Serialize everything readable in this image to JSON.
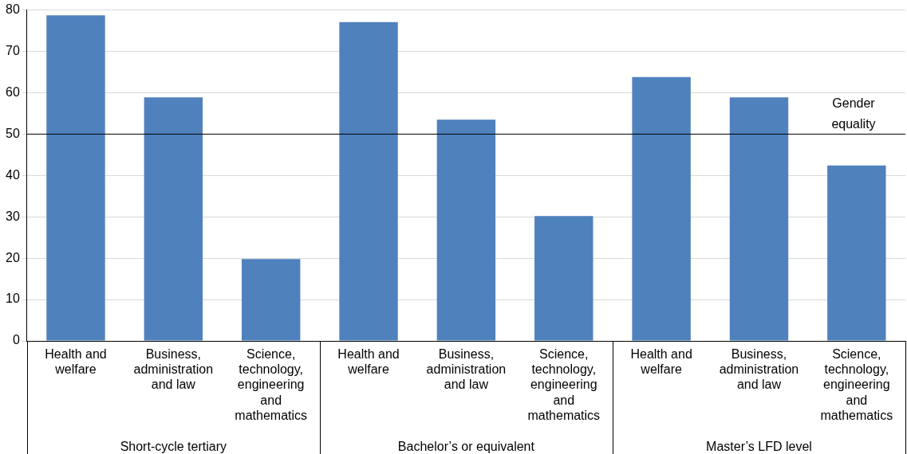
{
  "chart_data": {
    "type": "bar",
    "categories": [
      "Health and welfare",
      "Business, administration and law",
      "Science, technology, engineering and mathematics",
      "Health and welfare",
      "Business, administration and law",
      "Science, technology, engineering and mathematics",
      "Health and welfare",
      "Business, administration and law",
      "Science, technology, engineering and mathematics"
    ],
    "values": [
      78.7,
      58.9,
      19.8,
      77.1,
      53.5,
      30.2,
      63.8,
      58.9,
      42.4
    ],
    "color": "#4f81bd",
    "ylim": [
      0,
      80
    ],
    "yticks": [
      0,
      10,
      20,
      30,
      40,
      50,
      60,
      70,
      80
    ],
    "grid": "y",
    "legend": false,
    "ref_lines": [
      {
        "axis": "y",
        "value": 50,
        "label": "Gender equality",
        "color": "#000000"
      }
    ],
    "annotations": [
      "Short-cycle tertiary",
      "Bachelor’s or equivalent",
      "Master’s LFD level"
    ]
  }
}
